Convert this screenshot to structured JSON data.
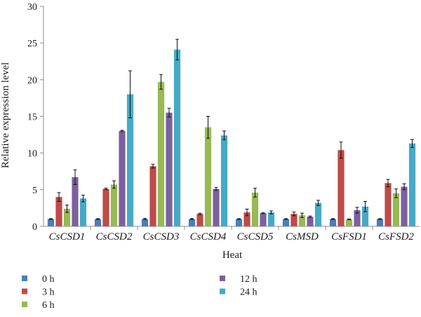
{
  "chart_data": {
    "type": "bar",
    "xlabel": "Heat",
    "ylabel": "Relative expression level",
    "ylim": [
      0,
      30
    ],
    "yticks": [
      0,
      5,
      10,
      15,
      20,
      25,
      30
    ],
    "grid": false,
    "legend_position": "bottom",
    "error_bars": true,
    "categories": [
      "CsCSD1",
      "CsCSD2",
      "CsCSD3",
      "CsCSD4",
      "CsCSD5",
      "CsMSD",
      "CsFSD1",
      "CsFSD2"
    ],
    "series": [
      {
        "name": "0 h",
        "color": "#4a7ebb",
        "values": [
          1.0,
          1.0,
          1.0,
          1.0,
          1.0,
          1.0,
          1.0,
          1.0
        ],
        "errors": [
          0.05,
          0.05,
          0.08,
          0.05,
          0.05,
          0.05,
          0.05,
          0.05
        ]
      },
      {
        "name": "3 h",
        "color": "#be4b48",
        "values": [
          4.0,
          5.1,
          8.2,
          1.7,
          1.9,
          1.7,
          10.4,
          5.9
        ],
        "errors": [
          0.6,
          0.1,
          0.25,
          0.1,
          0.45,
          0.25,
          1.1,
          0.5
        ]
      },
      {
        "name": "6 h",
        "color": "#98b954",
        "values": [
          2.4,
          5.7,
          19.7,
          13.5,
          4.6,
          1.5,
          0.95,
          4.5
        ],
        "errors": [
          0.5,
          0.5,
          1.0,
          1.5,
          0.6,
          0.3,
          0.05,
          0.6
        ]
      },
      {
        "name": "12 h",
        "color": "#7d60a0",
        "values": [
          6.7,
          13.0,
          15.5,
          5.1,
          1.8,
          1.3,
          2.2,
          5.4
        ],
        "errors": [
          1.0,
          0.1,
          0.6,
          0.2,
          0.05,
          0.1,
          0.4,
          0.4
        ]
      },
      {
        "name": "24 h",
        "color": "#46aac5",
        "values": [
          3.8,
          18.0,
          24.1,
          12.4,
          1.9,
          3.2,
          2.7,
          11.3
        ],
        "errors": [
          0.45,
          3.2,
          1.4,
          0.6,
          0.2,
          0.35,
          0.7,
          0.55
        ]
      }
    ]
  }
}
